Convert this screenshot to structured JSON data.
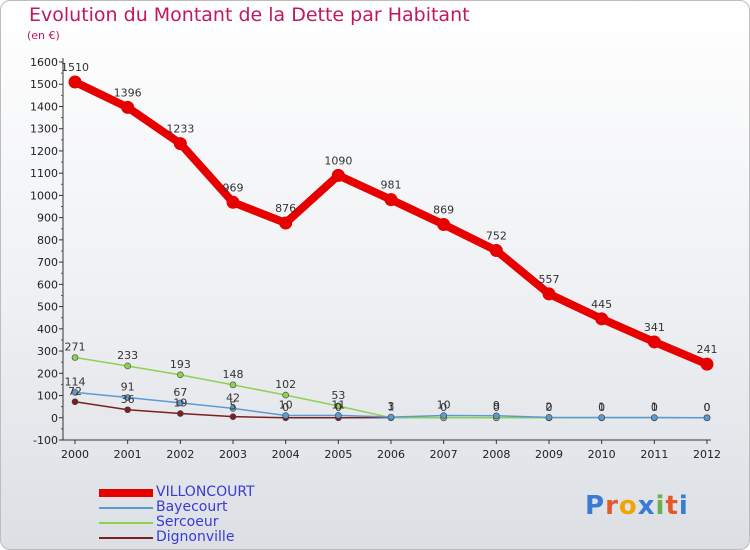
{
  "header": {
    "title": "Evolution du Montant de la Dette par Habitant",
    "subtitle": "(en €)"
  },
  "logo": {
    "text": "Proxiti",
    "letters": [
      "P",
      "r",
      "o",
      "x",
      "i",
      "t",
      "i"
    ],
    "colors": [
      "#3a7bd5",
      "#e05a2b",
      "#f0a500",
      "#3a7bd5",
      "#6ab04c",
      "#e05a2b",
      "#3a7bd5"
    ]
  },
  "chart_data": {
    "type": "line",
    "categories": [
      "2000",
      "2001",
      "2002",
      "2003",
      "2004",
      "2005",
      "2006",
      "2007",
      "2008",
      "2009",
      "2010",
      "2011",
      "2012"
    ],
    "ylim": [
      -100,
      1600
    ],
    "yticks": [
      -100,
      0,
      100,
      200,
      300,
      400,
      500,
      600,
      700,
      800,
      900,
      1000,
      1100,
      1200,
      1300,
      1400,
      1500,
      1600
    ],
    "grid": false,
    "legend": "bottom-left",
    "series": [
      {
        "name": "VILLONCOURT",
        "color": "#e60000",
        "width": 8,
        "values": [
          1510,
          1396,
          1233,
          969,
          876,
          1090,
          981,
          869,
          752,
          557,
          445,
          341,
          241
        ],
        "labels": [
          "1510",
          "1396",
          "1233",
          "969",
          "876",
          "1090",
          "981",
          "869",
          "752",
          "557",
          "445",
          "341",
          "241"
        ]
      },
      {
        "name": "Bayecourt",
        "color": "#5b9bd5",
        "width": 1.5,
        "values": [
          114,
          91,
          67,
          42,
          10,
          11,
          3,
          10,
          9,
          2,
          1,
          1,
          0
        ],
        "labels": [
          "114",
          "91",
          "67",
          "42",
          "10",
          "11",
          "3",
          "10",
          "9",
          "2",
          "1",
          "1",
          "0"
        ]
      },
      {
        "name": "Sercoeur",
        "color": "#8fd14f",
        "width": 1.5,
        "values": [
          271,
          233,
          193,
          148,
          102,
          53,
          0,
          0,
          0,
          0,
          0,
          0,
          0
        ],
        "labels": [
          "271",
          "233",
          "193",
          "148",
          "102",
          "53",
          "",
          "",
          "",
          "",
          "",
          "",
          ""
        ]
      },
      {
        "name": "Dignonville",
        "color": "#7b2020",
        "width": 1.5,
        "values": [
          72,
          36,
          19,
          5,
          0,
          0,
          1,
          0,
          0,
          0,
          0,
          0,
          0
        ],
        "labels": [
          "72",
          "36",
          "19",
          "5",
          "0",
          "0",
          "1",
          "0",
          "0",
          "0",
          "0",
          "0",
          "0"
        ]
      }
    ]
  }
}
